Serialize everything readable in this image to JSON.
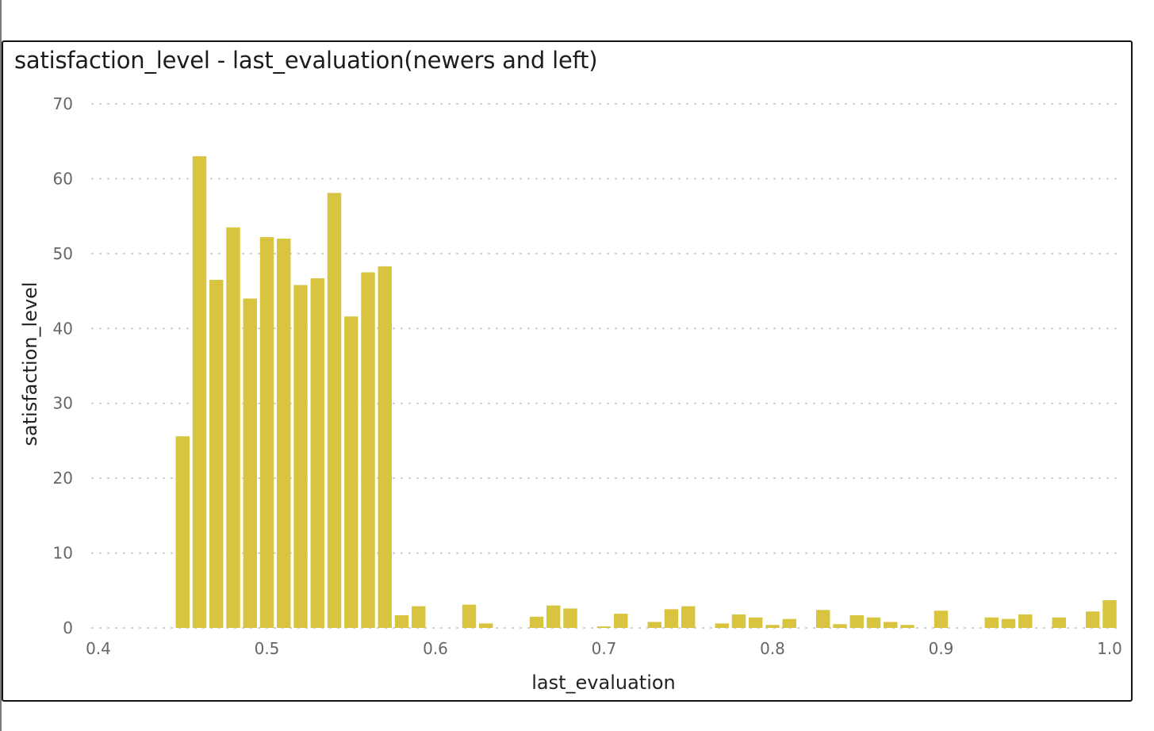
{
  "chart_data": {
    "type": "bar",
    "title": "satisfaction_level - last_evaluation(newers and left)",
    "xlabel": "last_evaluation",
    "ylabel": "satisfaction_level",
    "xlim": [
      0.4,
      1.0
    ],
    "ylim": [
      0,
      70
    ],
    "xticks": [
      "0.4",
      "0.5",
      "0.6",
      "0.7",
      "0.8",
      "0.9",
      "1.0"
    ],
    "yticks": [
      "0",
      "10",
      "20",
      "30",
      "40",
      "50",
      "60",
      "70"
    ],
    "grid": "horizontal dotted",
    "color": "#D9C43F",
    "x": [
      0.45,
      0.46,
      0.47,
      0.48,
      0.49,
      0.5,
      0.51,
      0.52,
      0.53,
      0.54,
      0.55,
      0.56,
      0.57,
      0.58,
      0.59,
      0.62,
      0.63,
      0.66,
      0.67,
      0.68,
      0.7,
      0.71,
      0.73,
      0.74,
      0.75,
      0.77,
      0.78,
      0.79,
      0.8,
      0.81,
      0.83,
      0.84,
      0.85,
      0.86,
      0.87,
      0.88,
      0.9,
      0.93,
      0.94,
      0.95,
      0.97,
      0.99,
      1.0
    ],
    "values": [
      25.6,
      63.0,
      46.5,
      53.5,
      44.0,
      52.2,
      52.0,
      45.8,
      46.7,
      58.1,
      41.6,
      47.5,
      48.3,
      1.7,
      2.9,
      3.1,
      0.6,
      1.5,
      3.0,
      2.6,
      0.2,
      1.9,
      0.8,
      2.5,
      2.9,
      0.6,
      1.8,
      1.4,
      0.4,
      1.2,
      2.4,
      0.5,
      1.7,
      1.4,
      0.8,
      0.4,
      2.3,
      1.4,
      1.2,
      1.8,
      1.4,
      2.2,
      3.7
    ]
  }
}
